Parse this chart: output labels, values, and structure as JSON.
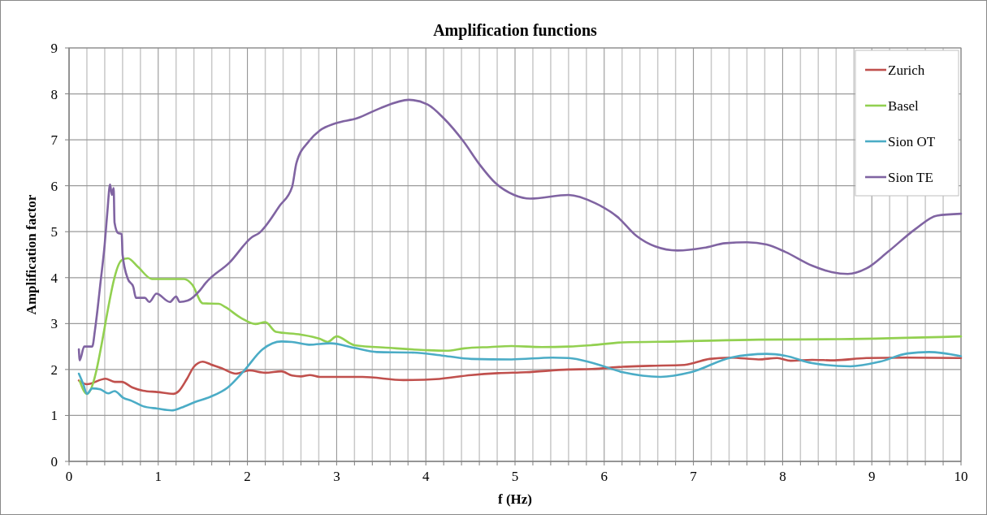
{
  "chart_data": {
    "type": "line",
    "title": "Amplification functions",
    "xlabel": "f (Hz)",
    "ylabel": "Amplification factor",
    "xlim": [
      0,
      10
    ],
    "ylim": [
      0,
      9
    ],
    "xticks": [
      0,
      {
        "value": 0.2,
        "label": null
      },
      {
        "value": 0.4,
        "label": null
      },
      {
        "value": 0.6,
        "label": null
      },
      {
        "value": 0.8,
        "label": null
      },
      1,
      {
        "value": 1.2,
        "label": null
      },
      {
        "value": 1.4,
        "label": null
      },
      {
        "value": 1.6,
        "label": null
      },
      {
        "value": 1.8,
        "label": null
      },
      2,
      {
        "value": 2.2,
        "label": null
      },
      {
        "value": 2.4,
        "label": null
      },
      {
        "value": 2.6,
        "label": null
      },
      {
        "value": 2.8,
        "label": null
      },
      3,
      {
        "value": 3.2,
        "label": null
      },
      {
        "value": 3.4,
        "label": null
      },
      {
        "value": 3.6,
        "label": null
      },
      {
        "value": 3.8,
        "label": null
      },
      4,
      {
        "value": 4.2,
        "label": null
      },
      {
        "value": 4.4,
        "label": null
      },
      {
        "value": 4.6,
        "label": null
      },
      {
        "value": 4.8,
        "label": null
      },
      5,
      {
        "value": 5.2,
        "label": null
      },
      {
        "value": 5.4,
        "label": null
      },
      {
        "value": 5.6,
        "label": null
      },
      {
        "value": 5.8,
        "label": null
      },
      6,
      {
        "value": 6.2,
        "label": null
      },
      {
        "value": 6.4,
        "label": null
      },
      {
        "value": 6.6,
        "label": null
      },
      {
        "value": 6.8,
        "label": null
      },
      7,
      {
        "value": 7.2,
        "label": null
      },
      {
        "value": 7.4,
        "label": null
      },
      {
        "value": 7.6,
        "label": null
      },
      {
        "value": 7.8,
        "label": null
      },
      8,
      {
        "value": 8.2,
        "label": null
      },
      {
        "value": 8.4,
        "label": null
      },
      {
        "value": 8.6,
        "label": null
      },
      {
        "value": 8.8,
        "label": null
      },
      9,
      {
        "value": 9.2,
        "label": null
      },
      {
        "value": 9.4,
        "label": null
      },
      {
        "value": 9.6,
        "label": null
      },
      {
        "value": 9.8,
        "label": null
      },
      10
    ],
    "yticks": [
      0,
      1,
      2,
      3,
      4,
      5,
      6,
      7,
      8,
      9
    ],
    "grid": true,
    "legend": "top right",
    "marker": "none",
    "line_style": "solid",
    "series": [
      {
        "name": "Zurich",
        "color": "#c0504d",
        "x": [
          0.11,
          0.2,
          0.41,
          0.51,
          0.59,
          0.71,
          0.83,
          0.99,
          1.17,
          1.23,
          1.32,
          1.4,
          1.5,
          1.59,
          1.71,
          1.87,
          2.02,
          2.2,
          2.38,
          2.5,
          2.6,
          2.7,
          2.81,
          3.29,
          3.75,
          4.11,
          4.51,
          4.81,
          5.12,
          5.6,
          5.86,
          6.21,
          6.51,
          6.9,
          7.0,
          7.18,
          7.42,
          7.73,
          7.94,
          8.09,
          8.33,
          8.58,
          8.94,
          9.4,
          10
        ],
        "values": [
          1.76,
          1.68,
          1.8,
          1.73,
          1.73,
          1.61,
          1.54,
          1.51,
          1.47,
          1.53,
          1.79,
          2.06,
          2.17,
          2.11,
          2.03,
          1.91,
          1.98,
          1.93,
          1.96,
          1.87,
          1.85,
          1.88,
          1.84,
          1.84,
          1.77,
          1.79,
          1.88,
          1.92,
          1.94,
          2.0,
          2.01,
          2.06,
          2.08,
          2.1,
          2.14,
          2.23,
          2.26,
          2.22,
          2.25,
          2.19,
          2.21,
          2.2,
          2.25,
          2.26,
          2.25
        ]
      },
      {
        "name": "Basel",
        "color": "#92d050",
        "x": [
          0.12,
          0.2,
          0.59,
          0.66,
          0.77,
          0.93,
          1.29,
          1.38,
          1.5,
          1.68,
          1.75,
          1.93,
          2.09,
          2.2,
          2.32,
          2.6,
          2.81,
          2.9,
          3.0,
          3.2,
          3.6,
          4.02,
          4.23,
          4.43,
          4.72,
          4.96,
          5.3,
          5.6,
          5.86,
          6.21,
          6.82,
          7.73,
          8.64,
          10
        ],
        "values": [
          1.75,
          1.47,
          4.38,
          4.42,
          4.24,
          3.97,
          3.97,
          3.85,
          3.44,
          3.43,
          3.36,
          3.12,
          2.99,
          3.03,
          2.82,
          2.76,
          2.67,
          2.6,
          2.72,
          2.53,
          2.47,
          2.42,
          2.41,
          2.46,
          2.49,
          2.51,
          2.49,
          2.5,
          2.53,
          2.59,
          2.61,
          2.65,
          2.66,
          2.72
        ]
      },
      {
        "name": "Sion OT",
        "color": "#4bacc6",
        "x": [
          0.11,
          0.16,
          0.2,
          0.26,
          0.35,
          0.44,
          0.51,
          0.61,
          0.7,
          0.83,
          0.99,
          1.15,
          1.26,
          1.41,
          1.59,
          1.78,
          1.96,
          2.17,
          2.38,
          2.5,
          2.69,
          2.93,
          3.2,
          3.45,
          3.84,
          4.2,
          4.51,
          4.96,
          5.42,
          5.6,
          5.86,
          6.21,
          6.63,
          6.97,
          7.42,
          7.82,
          8.03,
          8.33,
          8.76,
          9.09,
          9.4,
          9.64,
          10
        ],
        "values": [
          1.91,
          1.68,
          1.47,
          1.59,
          1.57,
          1.48,
          1.53,
          1.38,
          1.32,
          1.2,
          1.15,
          1.11,
          1.17,
          1.29,
          1.41,
          1.61,
          1.97,
          2.44,
          2.61,
          2.6,
          2.54,
          2.57,
          2.47,
          2.38,
          2.37,
          2.3,
          2.23,
          2.22,
          2.26,
          2.25,
          2.15,
          1.94,
          1.84,
          1.94,
          2.26,
          2.34,
          2.3,
          2.14,
          2.07,
          2.17,
          2.35,
          2.38,
          2.29
        ]
      },
      {
        "name": "Sion TE",
        "color": "#8064a2",
        "x": [
          0.11,
          0.12,
          0.17,
          0.26,
          0.29,
          0.32,
          0.35,
          0.4,
          0.43,
          0.46,
          0.48,
          0.5,
          0.51,
          0.55,
          0.59,
          0.6,
          0.66,
          0.72,
          0.75,
          0.85,
          0.9,
          0.98,
          1.13,
          1.2,
          1.24,
          1.33,
          1.47,
          1.53,
          1.8,
          2.05,
          2.13,
          2.36,
          2.5,
          2.55,
          2.69,
          2.81,
          2.99,
          3.23,
          3.48,
          3.81,
          4.02,
          4.2,
          4.42,
          4.6,
          4.78,
          4.99,
          5.17,
          5.6,
          5.9,
          6.15,
          6.36,
          6.57,
          6.82,
          7.12,
          7.36,
          7.6,
          7.82,
          8.03,
          8.33,
          8.55,
          8.73,
          8.94,
          9.18,
          9.49,
          9.73,
          10
        ],
        "values": [
          2.44,
          2.2,
          2.5,
          2.5,
          2.85,
          3.32,
          3.85,
          4.73,
          5.44,
          6.03,
          5.8,
          5.95,
          5.2,
          4.97,
          4.95,
          4.5,
          3.97,
          3.8,
          3.56,
          3.56,
          3.47,
          3.65,
          3.47,
          3.59,
          3.47,
          3.5,
          3.73,
          3.88,
          4.33,
          4.88,
          4.97,
          5.56,
          5.97,
          6.5,
          6.97,
          7.2,
          7.36,
          7.47,
          7.68,
          7.87,
          7.77,
          7.47,
          6.97,
          6.47,
          6.06,
          5.8,
          5.72,
          5.8,
          5.62,
          5.32,
          4.91,
          4.68,
          4.59,
          4.65,
          4.75,
          4.77,
          4.72,
          4.56,
          4.26,
          4.12,
          4.08,
          4.2,
          4.56,
          5.06,
          5.35,
          5.39
        ]
      }
    ]
  }
}
